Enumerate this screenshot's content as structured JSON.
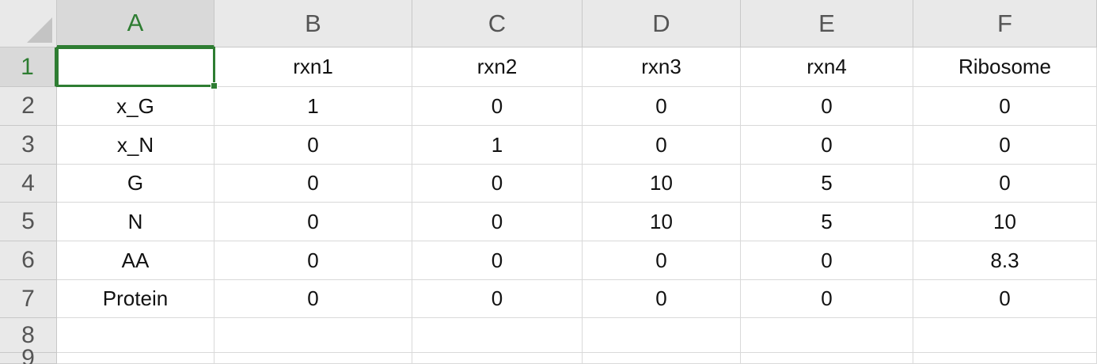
{
  "columns": [
    "A",
    "B",
    "C",
    "D",
    "E",
    "F"
  ],
  "active_column": "A",
  "rows": [
    "1",
    "2",
    "3",
    "4",
    "5",
    "6",
    "7",
    "8",
    "9"
  ],
  "active_row": "1",
  "selected_cell": "A1",
  "colors": {
    "selection": "#2e7d32",
    "header_bg": "#e9e9e9",
    "gridline": "#d9d9d9"
  },
  "cells": [
    [
      "",
      "rxn1",
      "rxn2",
      "rxn3",
      "rxn4",
      "Ribosome"
    ],
    [
      "x_G",
      "1",
      "0",
      "0",
      "0",
      "0"
    ],
    [
      "x_N",
      "0",
      "1",
      "0",
      "0",
      "0"
    ],
    [
      "G",
      "0",
      "0",
      "10",
      "5",
      "0"
    ],
    [
      "N",
      "0",
      "0",
      "10",
      "5",
      "10"
    ],
    [
      "AA",
      "0",
      "0",
      "0",
      "0",
      "8.3"
    ],
    [
      "Protein",
      "0",
      "0",
      "0",
      "0",
      "0"
    ],
    [
      "",
      "",
      "",
      "",
      "",
      ""
    ],
    [
      "",
      "",
      "",
      "",
      "",
      ""
    ]
  ]
}
